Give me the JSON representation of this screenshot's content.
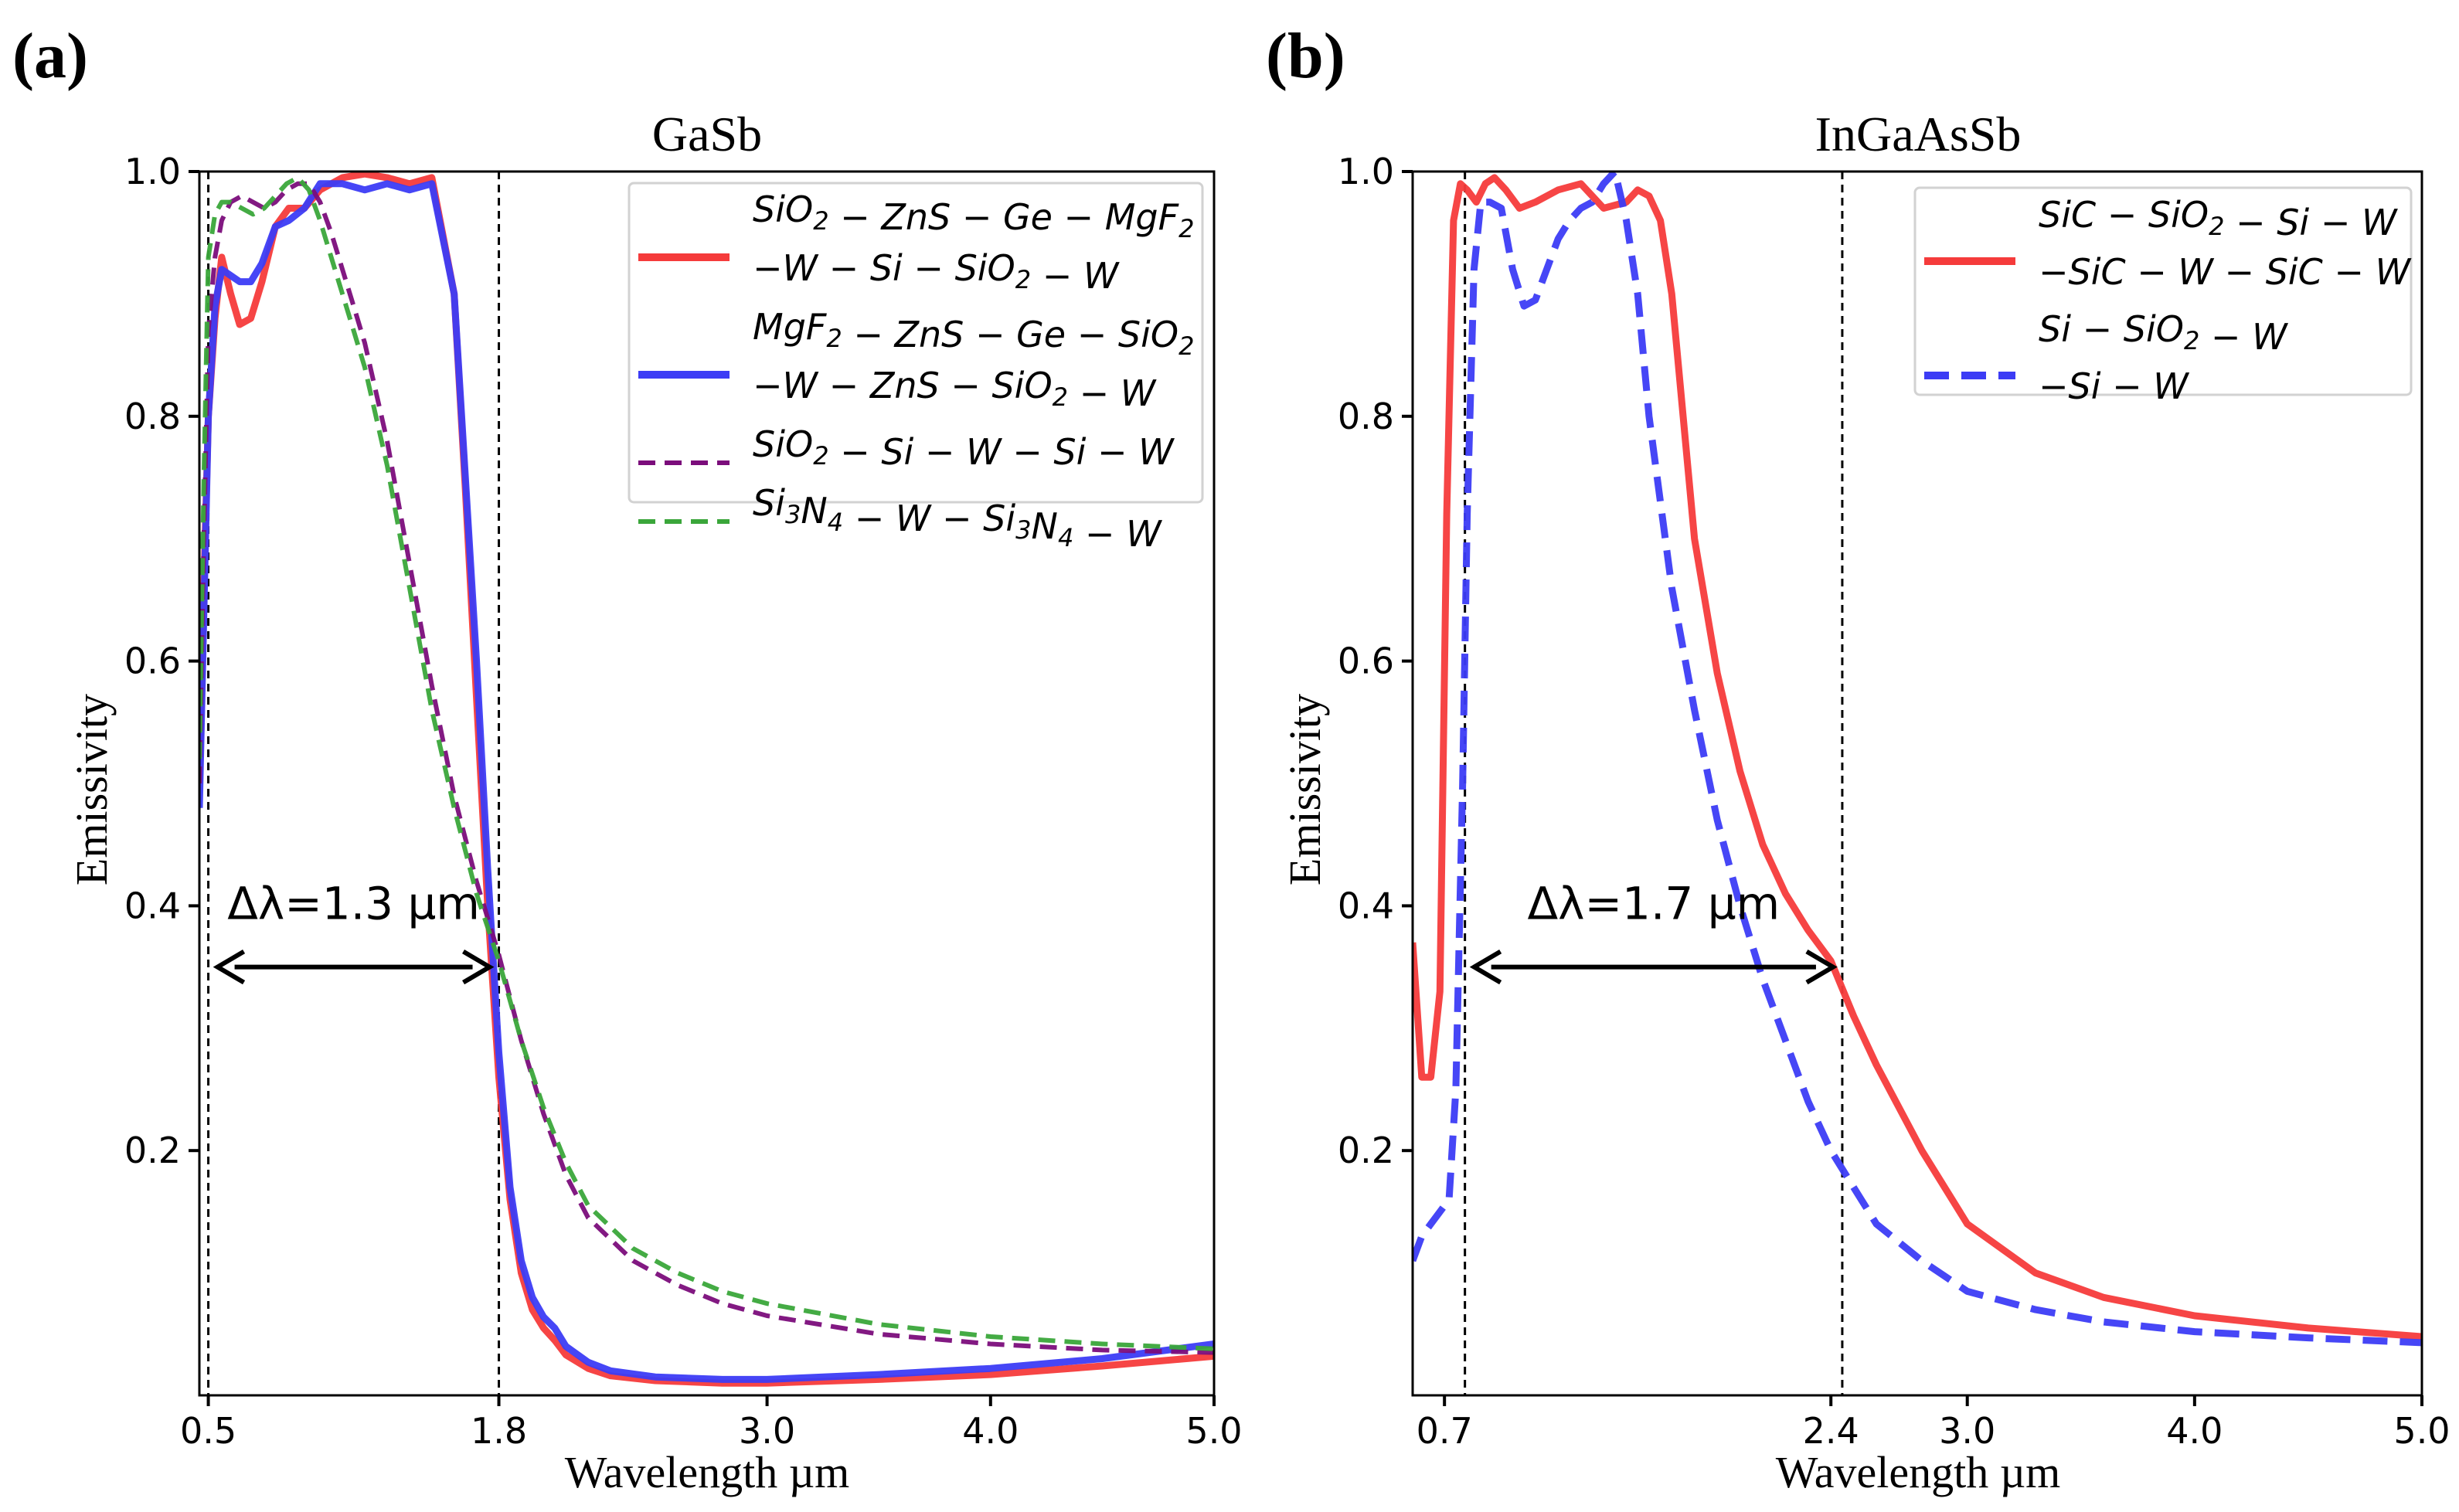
{
  "chart_data": [
    {
      "panel_label": "(a)",
      "type": "line",
      "title": "GaSb",
      "xlabel": "Wavelength µm",
      "ylabel": "Emissivity",
      "xlim": [
        0.46,
        5.0
      ],
      "ylim": [
        0.0,
        1.0
      ],
      "xticks": [
        0.5,
        1.8,
        3.0,
        4.0,
        5.0
      ],
      "xtick_labels": [
        "0.5",
        "1.8",
        "3.0",
        "4.0",
        "5.0"
      ],
      "yticks": [
        0.2,
        0.4,
        0.6,
        0.8,
        1.0
      ],
      "ytick_labels": [
        "0.2",
        "0.4",
        "0.6",
        "0.8",
        "1.0"
      ],
      "vlines": [
        0.5,
        1.8
      ],
      "annotation": {
        "text": "Δλ=1.3 µm",
        "x_from": 0.5,
        "x_to": 1.8,
        "y": 0.35
      },
      "legend_position": "top-right",
      "series": [
        {
          "name": "SiO2-ZnS-Ge-MgF2-W-Si-SiO2-W",
          "legend_lines": [
            [
              "SiO",
              "2",
              " − ZnS − Ge − MgF",
              "2"
            ],
            [
              "−W − Si − SiO",
              "2",
              " − W"
            ]
          ],
          "color": "#f53b3b",
          "style": "solid",
          "x": [
            0.46,
            0.48,
            0.5,
            0.53,
            0.56,
            0.6,
            0.64,
            0.69,
            0.74,
            0.8,
            0.86,
            0.93,
            1.0,
            1.1,
            1.2,
            1.3,
            1.4,
            1.5,
            1.6,
            1.65,
            1.7,
            1.75,
            1.8,
            1.85,
            1.9,
            1.95,
            2.0,
            2.05,
            2.1,
            2.2,
            2.3,
            2.5,
            2.8,
            3.0,
            3.5,
            4.0,
            4.5,
            5.0
          ],
          "y": [
            0.5,
            0.66,
            0.8,
            0.88,
            0.93,
            0.9,
            0.875,
            0.88,
            0.91,
            0.955,
            0.97,
            0.97,
            0.985,
            0.995,
            0.998,
            0.995,
            0.99,
            0.995,
            0.9,
            0.74,
            0.57,
            0.4,
            0.26,
            0.16,
            0.1,
            0.07,
            0.055,
            0.045,
            0.033,
            0.022,
            0.016,
            0.012,
            0.01,
            0.01,
            0.013,
            0.017,
            0.024,
            0.032
          ]
        },
        {
          "name": "MgF2-ZnS-Ge-SiO2-W-ZnS-SiO2-W",
          "legend_lines": [
            [
              "MgF",
              "2",
              " − ZnS − Ge − SiO",
              "2"
            ],
            [
              "−W − ZnS − SiO",
              "2",
              " − W"
            ]
          ],
          "color": "#3c3cf5",
          "style": "solid",
          "x": [
            0.46,
            0.48,
            0.5,
            0.53,
            0.56,
            0.6,
            0.64,
            0.69,
            0.74,
            0.8,
            0.86,
            0.93,
            1.0,
            1.1,
            1.2,
            1.3,
            1.4,
            1.5,
            1.6,
            1.65,
            1.7,
            1.75,
            1.8,
            1.85,
            1.9,
            1.95,
            2.0,
            2.05,
            2.1,
            2.2,
            2.3,
            2.5,
            2.8,
            3.0,
            3.5,
            4.0,
            4.5,
            5.0
          ],
          "y": [
            0.48,
            0.64,
            0.8,
            0.89,
            0.92,
            0.915,
            0.91,
            0.91,
            0.925,
            0.955,
            0.96,
            0.97,
            0.99,
            0.99,
            0.985,
            0.99,
            0.985,
            0.99,
            0.9,
            0.75,
            0.6,
            0.43,
            0.28,
            0.17,
            0.11,
            0.08,
            0.064,
            0.055,
            0.04,
            0.027,
            0.02,
            0.015,
            0.013,
            0.013,
            0.017,
            0.022,
            0.03,
            0.042
          ]
        },
        {
          "name": "SiO2-Si-W-Si-W",
          "legend_lines": [
            [
              "SiO",
              "2",
              " − Si − W − Si − W"
            ]
          ],
          "color": "#7b0d7b",
          "style": "dashed",
          "x": [
            0.46,
            0.48,
            0.5,
            0.53,
            0.56,
            0.6,
            0.65,
            0.7,
            0.75,
            0.8,
            0.85,
            0.9,
            0.95,
            1.0,
            1.05,
            1.1,
            1.15,
            1.2,
            1.3,
            1.4,
            1.5,
            1.6,
            1.7,
            1.8,
            1.9,
            2.0,
            2.1,
            2.2,
            2.4,
            2.6,
            2.8,
            3.0,
            3.5,
            4.0,
            4.5,
            5.0
          ],
          "y": [
            0.5,
            0.7,
            0.87,
            0.93,
            0.96,
            0.975,
            0.98,
            0.975,
            0.97,
            0.975,
            0.985,
            0.99,
            0.99,
            0.975,
            0.95,
            0.92,
            0.89,
            0.86,
            0.78,
            0.68,
            0.58,
            0.49,
            0.42,
            0.36,
            0.29,
            0.23,
            0.18,
            0.145,
            0.11,
            0.09,
            0.075,
            0.065,
            0.05,
            0.042,
            0.037,
            0.035
          ]
        },
        {
          "name": "Si3N4-W-Si3N4-W",
          "legend_lines": [
            [
              "Si",
              "3",
              "N",
              "4",
              " − W − Si",
              "3",
              "N",
              "4",
              " − W"
            ]
          ],
          "color": "#3aa63a",
          "style": "dashed",
          "x": [
            0.46,
            0.48,
            0.5,
            0.53,
            0.56,
            0.6,
            0.65,
            0.7,
            0.75,
            0.8,
            0.85,
            0.9,
            0.95,
            1.0,
            1.05,
            1.1,
            1.15,
            1.2,
            1.3,
            1.4,
            1.5,
            1.6,
            1.7,
            1.8,
            1.9,
            2.0,
            2.1,
            2.2,
            2.4,
            2.6,
            2.8,
            3.0,
            3.5,
            4.0,
            4.5,
            5.0
          ],
          "y": [
            0.52,
            0.75,
            0.93,
            0.965,
            0.975,
            0.975,
            0.97,
            0.965,
            0.97,
            0.98,
            0.99,
            0.995,
            0.985,
            0.96,
            0.93,
            0.9,
            0.87,
            0.84,
            0.76,
            0.66,
            0.56,
            0.48,
            0.41,
            0.355,
            0.29,
            0.235,
            0.19,
            0.155,
            0.12,
            0.1,
            0.085,
            0.075,
            0.058,
            0.048,
            0.042,
            0.038
          ]
        }
      ]
    },
    {
      "panel_label": "(b)",
      "type": "line",
      "title": "InGaAsSb",
      "xlabel": "Wavelength µm",
      "ylabel": "Emissivity",
      "xlim": [
        0.56,
        5.0
      ],
      "ylim": [
        0.0,
        1.0
      ],
      "xticks": [
        0.7,
        2.4,
        3.0,
        4.0,
        5.0
      ],
      "xtick_labels": [
        "0.7",
        "2.4",
        "3.0",
        "4.0",
        "5.0"
      ],
      "yticks": [
        0.2,
        0.4,
        0.6,
        0.8,
        1.0
      ],
      "ytick_labels": [
        "0.2",
        "0.4",
        "0.6",
        "0.8",
        "1.0"
      ],
      "vlines": [
        0.79,
        2.45
      ],
      "annotation": {
        "text": "Δλ=1.7 µm",
        "x_from": 0.79,
        "x_to": 2.45,
        "y": 0.35
      },
      "legend_position": "top-right",
      "series": [
        {
          "name": "SiC-SiO2-Si-W-SiC-W-SiC-W",
          "legend_lines": [
            [
              "SiC − SiO",
              "2",
              " − Si − W"
            ],
            [
              "−SiC − W − SiC − W"
            ]
          ],
          "color": "#f53b3b",
          "style": "solid",
          "x": [
            0.56,
            0.6,
            0.64,
            0.68,
            0.71,
            0.74,
            0.77,
            0.8,
            0.84,
            0.88,
            0.92,
            0.97,
            1.03,
            1.1,
            1.2,
            1.3,
            1.4,
            1.5,
            1.55,
            1.6,
            1.65,
            1.7,
            1.75,
            1.8,
            1.9,
            2.0,
            2.1,
            2.2,
            2.3,
            2.4,
            2.5,
            2.6,
            2.8,
            3.0,
            3.3,
            3.6,
            4.0,
            4.5,
            5.0
          ],
          "y": [
            0.37,
            0.26,
            0.26,
            0.33,
            0.72,
            0.96,
            0.99,
            0.985,
            0.975,
            0.99,
            0.995,
            0.985,
            0.97,
            0.975,
            0.985,
            0.99,
            0.97,
            0.975,
            0.985,
            0.98,
            0.96,
            0.9,
            0.8,
            0.7,
            0.59,
            0.51,
            0.45,
            0.41,
            0.38,
            0.355,
            0.31,
            0.27,
            0.2,
            0.14,
            0.1,
            0.08,
            0.065,
            0.055,
            0.048
          ]
        },
        {
          "name": "Si-SiO2-W-Si-W",
          "legend_lines": [
            [
              "Si − SiO",
              "2",
              " − W"
            ],
            [
              "−Si − W"
            ]
          ],
          "color": "#3c3cf5",
          "style": "dashed",
          "x": [
            0.56,
            0.6,
            0.64,
            0.68,
            0.72,
            0.75,
            0.78,
            0.8,
            0.83,
            0.86,
            0.9,
            0.95,
            1.0,
            1.05,
            1.1,
            1.15,
            1.2,
            1.25,
            1.3,
            1.35,
            1.4,
            1.45,
            1.5,
            1.55,
            1.6,
            1.7,
            1.8,
            1.9,
            2.0,
            2.1,
            2.2,
            2.3,
            2.4,
            2.5,
            2.6,
            2.8,
            3.0,
            3.3,
            3.6,
            4.0,
            4.5,
            5.0
          ],
          "y": [
            0.11,
            0.13,
            0.14,
            0.15,
            0.16,
            0.25,
            0.5,
            0.72,
            0.92,
            0.975,
            0.975,
            0.97,
            0.92,
            0.89,
            0.895,
            0.92,
            0.945,
            0.96,
            0.97,
            0.975,
            0.99,
            1.0,
            0.96,
            0.9,
            0.8,
            0.66,
            0.56,
            0.47,
            0.4,
            0.34,
            0.29,
            0.24,
            0.2,
            0.17,
            0.14,
            0.11,
            0.085,
            0.07,
            0.06,
            0.052,
            0.047,
            0.043
          ]
        }
      ]
    }
  ]
}
